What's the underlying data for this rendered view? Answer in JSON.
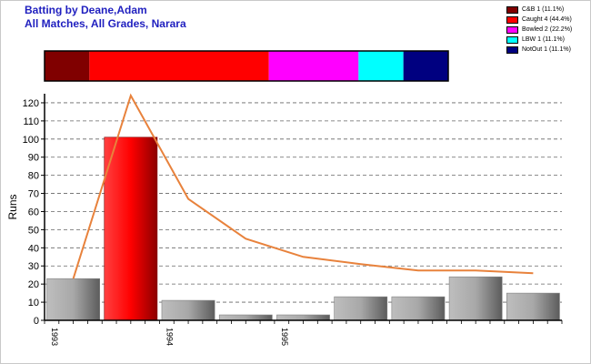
{
  "header": {
    "title_line1": "Batting by Deane,Adam",
    "title_line2": "All Matches, All Grades, Narara"
  },
  "legend": [
    {
      "label": "C&B 1 (11.1%)",
      "color": "#800000"
    },
    {
      "label": "Caught 4 (44.4%)",
      "color": "#ff0000"
    },
    {
      "label": "Bowled 2 (22.2%)",
      "color": "#ff00ff"
    },
    {
      "label": "LBW 1 (11.1%)",
      "color": "#00ffff"
    },
    {
      "label": "NotOut 1 (11.1%)",
      "color": "#000080"
    }
  ],
  "chart_data": {
    "type": "bar",
    "dismissals": [
      {
        "name": "C&B",
        "count": 1,
        "percent": 11.1,
        "color": "#800000"
      },
      {
        "name": "Caught",
        "count": 4,
        "percent": 44.4,
        "color": "#ff0000"
      },
      {
        "name": "Bowled",
        "count": 2,
        "percent": 22.2,
        "color": "#ff00ff"
      },
      {
        "name": "LBW",
        "count": 1,
        "percent": 11.1,
        "color": "#00ffff"
      },
      {
        "name": "NotOut",
        "count": 1,
        "percent": 11.1,
        "color": "#000080"
      }
    ],
    "x_labels": [
      "1993",
      "",
      "1994",
      "",
      "1995",
      "",
      "",
      "",
      ""
    ],
    "runs": [
      23,
      101,
      11,
      3,
      3,
      13,
      13,
      24,
      15
    ],
    "highlight_index": 1,
    "highlight_color": "#ff0000",
    "bar_color": "#a8a8a8",
    "line": {
      "values": [
        23,
        124,
        67,
        45,
        35,
        31,
        27.5,
        27.5,
        26
      ],
      "color": "#e8823c"
    },
    "ylabel": "Runs",
    "ylim": [
      0,
      125
    ],
    "y_ticks": [
      0,
      10,
      20,
      30,
      40,
      50,
      60,
      70,
      80,
      90,
      100,
      110,
      120
    ],
    "grid": true
  }
}
